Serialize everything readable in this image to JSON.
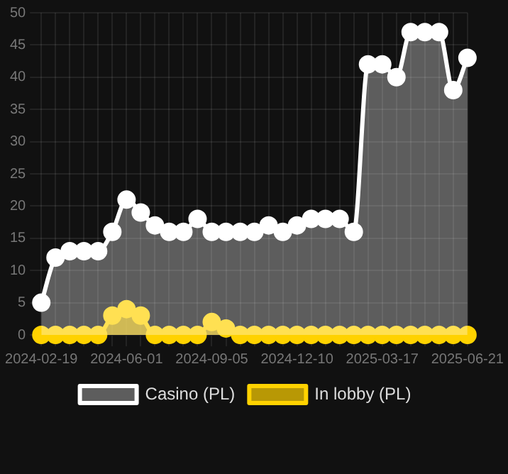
{
  "chart_data": {
    "type": "area",
    "categories": [
      "2024-02-19",
      null,
      null,
      null,
      null,
      null,
      "2024-06-01",
      null,
      null,
      null,
      null,
      null,
      "2024-09-05",
      null,
      null,
      null,
      null,
      null,
      "2024-12-10",
      null,
      null,
      null,
      null,
      null,
      "2025-03-17",
      null,
      null,
      null,
      null,
      null,
      "2025-06-21"
    ],
    "series": [
      {
        "name": "In lobby (PL)",
        "color": "#ffd200",
        "values": [
          0,
          0,
          0,
          0,
          0,
          3,
          4,
          3,
          0,
          0,
          0,
          0,
          2,
          1,
          0,
          0,
          0,
          0,
          0,
          0,
          0,
          0,
          0,
          0,
          0,
          0,
          0,
          0,
          0,
          0,
          0
        ]
      },
      {
        "name": "Casino (PL)",
        "color": "#ffffff",
        "values": [
          5,
          12,
          13,
          13,
          13,
          16,
          21,
          19,
          17,
          16,
          16,
          18,
          16,
          16,
          16,
          16,
          17,
          16,
          17,
          18,
          18,
          18,
          16,
          42,
          42,
          40,
          47,
          47,
          47,
          38,
          43
        ]
      }
    ],
    "ylim": [
      0,
      50
    ],
    "yticks": [
      0,
      5,
      10,
      15,
      20,
      25,
      30,
      35,
      40,
      45,
      50
    ],
    "grid": true,
    "legend": "bottom",
    "marker": "circle"
  }
}
